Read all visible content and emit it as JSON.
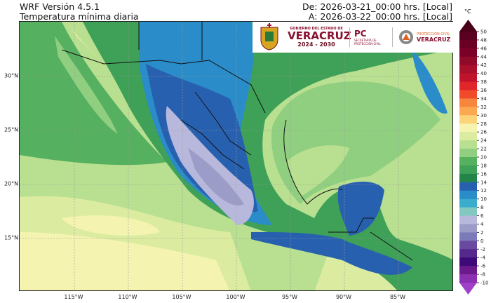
{
  "header": {
    "model": "WRF Versión 4.5.1",
    "variable": "Temperatura mínima diaria",
    "from": "De: 2026-03-21_00:00 hrs. [Local]",
    "to": "A: 2026-03-22_00:00 hrs. [Local]"
  },
  "axes": {
    "longitudes": [
      "115°W",
      "110°W",
      "105°W",
      "100°W",
      "95°W",
      "90°W",
      "85°W"
    ],
    "latitudes": [
      "30°N",
      "25°N",
      "20°N",
      "15°N"
    ]
  },
  "logos": {
    "gov_line1": "GOBIERNO DEL ESTADO DE",
    "gov_name": "VERACRUZ",
    "gov_years": "2024 - 2030",
    "pc": "PC",
    "pc_sub": "SECRETARÍA DE PROTECCIÓN CIVIL",
    "pcv_line1": "PROTECCIÓN CIVIL",
    "pcv_line2": "VERACRUZ"
  },
  "colorbar": {
    "unit": "°C",
    "ticks": [
      "50",
      "48",
      "46",
      "44",
      "42",
      "40",
      "38",
      "36",
      "34",
      "32",
      "30",
      "28",
      "26",
      "24",
      "22",
      "20",
      "18",
      "16",
      "14",
      "12",
      "10",
      "8",
      "6",
      "4",
      "2",
      "0",
      "-2",
      "-4",
      "-6",
      "-8",
      "-10"
    ],
    "over_color": "#4a0018",
    "under_color": "#a040c8",
    "colors": [
      "#5a0020",
      "#6b0025",
      "#7d0028",
      "#900a2a",
      "#a8102c",
      "#c0142c",
      "#e0262a",
      "#f04a2a",
      "#f7853e",
      "#fba850",
      "#fdd37a",
      "#f5f3b0",
      "#dbeca0",
      "#b8e090",
      "#90cf80",
      "#55b060",
      "#3fa058",
      "#23854a",
      "#2860b0",
      "#2a8cc8",
      "#3aaccc",
      "#80c8c0",
      "#b8b8dc",
      "#9c9cc8",
      "#7c7ab8",
      "#6a4aa0",
      "#54288c",
      "#3e0a7a",
      "#6a1a8a",
      "#8a30b0"
    ]
  }
}
